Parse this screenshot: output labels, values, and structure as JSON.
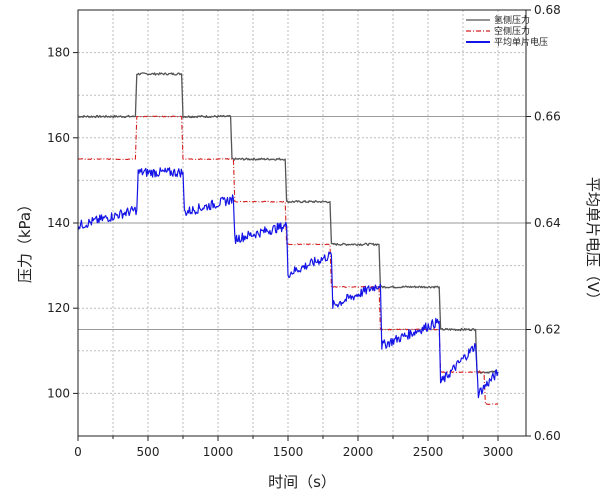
{
  "chart_data": {
    "type": "line",
    "title": "",
    "xlabel": "时间（s）",
    "ylabel": "压力（kPa）",
    "y2label": "平均单片电压（V）",
    "xlim": [
      0,
      3200
    ],
    "ylim": [
      90,
      190
    ],
    "y2lim": [
      0.6,
      0.68
    ],
    "x_ticks": [
      0,
      500,
      1000,
      1500,
      2000,
      2500,
      3000
    ],
    "y_ticks": [
      100,
      120,
      140,
      160,
      180
    ],
    "y2_ticks": [
      "0.60",
      "0.62",
      "0.64",
      "0.66",
      "0.68"
    ],
    "grid": true,
    "legend_position": "top-right",
    "colors": {
      "hydrogen": "#555555",
      "air": "#d42020",
      "voltage": "#1414e6"
    },
    "series": [
      {
        "name": "氢侧压力",
        "axis": "left",
        "x": [
          0,
          410,
          420,
          740,
          750,
          1090,
          1100,
          1480,
          1490,
          1800,
          1810,
          2150,
          2160,
          2580,
          2590,
          2840,
          2850,
          3000
        ],
        "values": [
          165,
          165,
          175,
          175,
          165,
          165,
          155,
          155,
          145,
          145,
          135,
          135,
          125,
          125,
          115,
          115,
          105,
          105
        ]
      },
      {
        "name": "空侧压力",
        "axis": "left",
        "x": [
          0,
          410,
          420,
          740,
          750,
          1110,
          1120,
          1480,
          1490,
          1800,
          1810,
          2150,
          2160,
          2580,
          2590,
          2840,
          2850,
          2900,
          2910,
          3000
        ],
        "values": [
          155,
          155,
          165,
          165,
          155,
          155,
          145,
          145,
          135,
          135,
          125,
          125,
          115,
          115,
          105,
          105,
          105,
          105,
          97.5,
          97.5
        ]
      },
      {
        "name": "平均单片电压",
        "axis": "right",
        "x": [
          0,
          420,
          430,
          750,
          760,
          1110,
          1120,
          1490,
          1500,
          1810,
          1820,
          2160,
          2170,
          2580,
          2590,
          2840,
          2860,
          3000
        ],
        "values": [
          0.6395,
          0.6425,
          0.6495,
          0.6495,
          0.642,
          0.6445,
          0.637,
          0.6395,
          0.6305,
          0.634,
          0.6245,
          0.6285,
          0.617,
          0.6215,
          0.61,
          0.617,
          0.608,
          0.612
        ]
      }
    ]
  }
}
